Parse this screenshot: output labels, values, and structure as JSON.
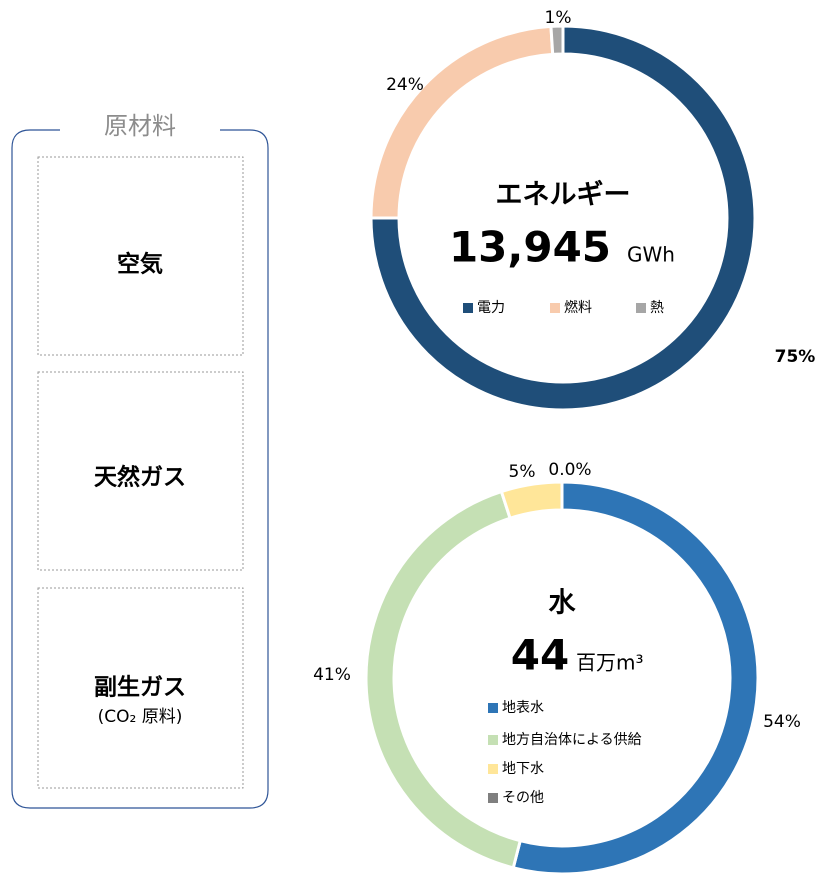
{
  "raw_materials": {
    "title": "原材料",
    "items": [
      {
        "label": "空気"
      },
      {
        "label": "天然ガス"
      },
      {
        "label": "副生ガス",
        "note": "(CO₂ 原料)"
      }
    ]
  },
  "chart_data": [
    {
      "type": "pie",
      "title": "エネルギー",
      "total": "13,945",
      "unit": "GWh",
      "categories": [
        "電力",
        "燃料",
        "熱"
      ],
      "values": [
        75,
        24,
        1
      ],
      "value_labels": [
        "75%",
        "24%",
        "1%"
      ],
      "colors": [
        "#1f4e79",
        "#f8cbad",
        "#a6a6a6"
      ],
      "legend": "horizontal"
    },
    {
      "type": "pie",
      "title": "水",
      "total": "44",
      "unit": "百万m³",
      "categories": [
        "地表水",
        "地方自治体による供給",
        "地下水",
        "その他"
      ],
      "values": [
        54,
        41,
        5,
        0.0
      ],
      "value_labels": [
        "54%",
        "41%",
        "5%",
        "0.0%"
      ],
      "colors": [
        "#2e75b6",
        "#c5e0b4",
        "#ffe699",
        "#7f7f7f"
      ],
      "legend": "vertical"
    }
  ]
}
